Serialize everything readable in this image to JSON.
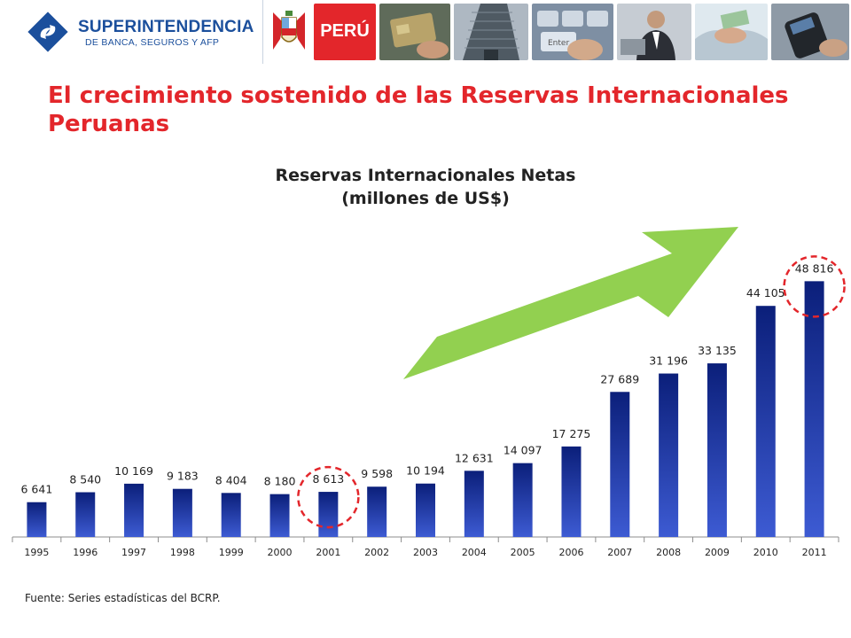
{
  "header": {
    "logo": {
      "line1": "SUPERINTENDENCIA",
      "line2": "DE BANCA, SEGUROS Y AFP"
    },
    "peru_label": "PERÚ",
    "brand_blue": "#1b4f9c",
    "brand_red": "#e3262b"
  },
  "title": "El crecimiento sostenido de las Reservas Internacionales Peruanas",
  "source": "Fuente: Series estadísticas del BCRP.",
  "chart_data": {
    "type": "bar",
    "title_line1": "Reservas Internacionales Netas",
    "title_line2": "(millones de US$)",
    "categories": [
      "1995",
      "1996",
      "1997",
      "1998",
      "1999",
      "2000",
      "2001",
      "2002",
      "2003",
      "2004",
      "2005",
      "2006",
      "2007",
      "2008",
      "2009",
      "2010",
      "2011"
    ],
    "values": [
      6641,
      8540,
      10169,
      9183,
      8404,
      8180,
      8613,
      9598,
      10194,
      12631,
      14097,
      17275,
      27689,
      31196,
      33135,
      44105,
      48816
    ],
    "value_labels": [
      "6 641",
      "8 540",
      "10 169",
      "9 183",
      "8 404",
      "8 180",
      "8 613",
      "9 598",
      "10 194",
      "12 631",
      "14 097",
      "17 275",
      "27 689",
      "31 196",
      "33 135",
      "44 105",
      "48 816"
    ],
    "highlighted": [
      "2001",
      "2011"
    ],
    "arrow": true,
    "arrow_color": "#92d050",
    "bar_color_top": "#0b1f7a",
    "bar_color_bottom": "#3d5bd3",
    "highlight_color": "#e3262b",
    "grid": false,
    "legend": "none"
  }
}
